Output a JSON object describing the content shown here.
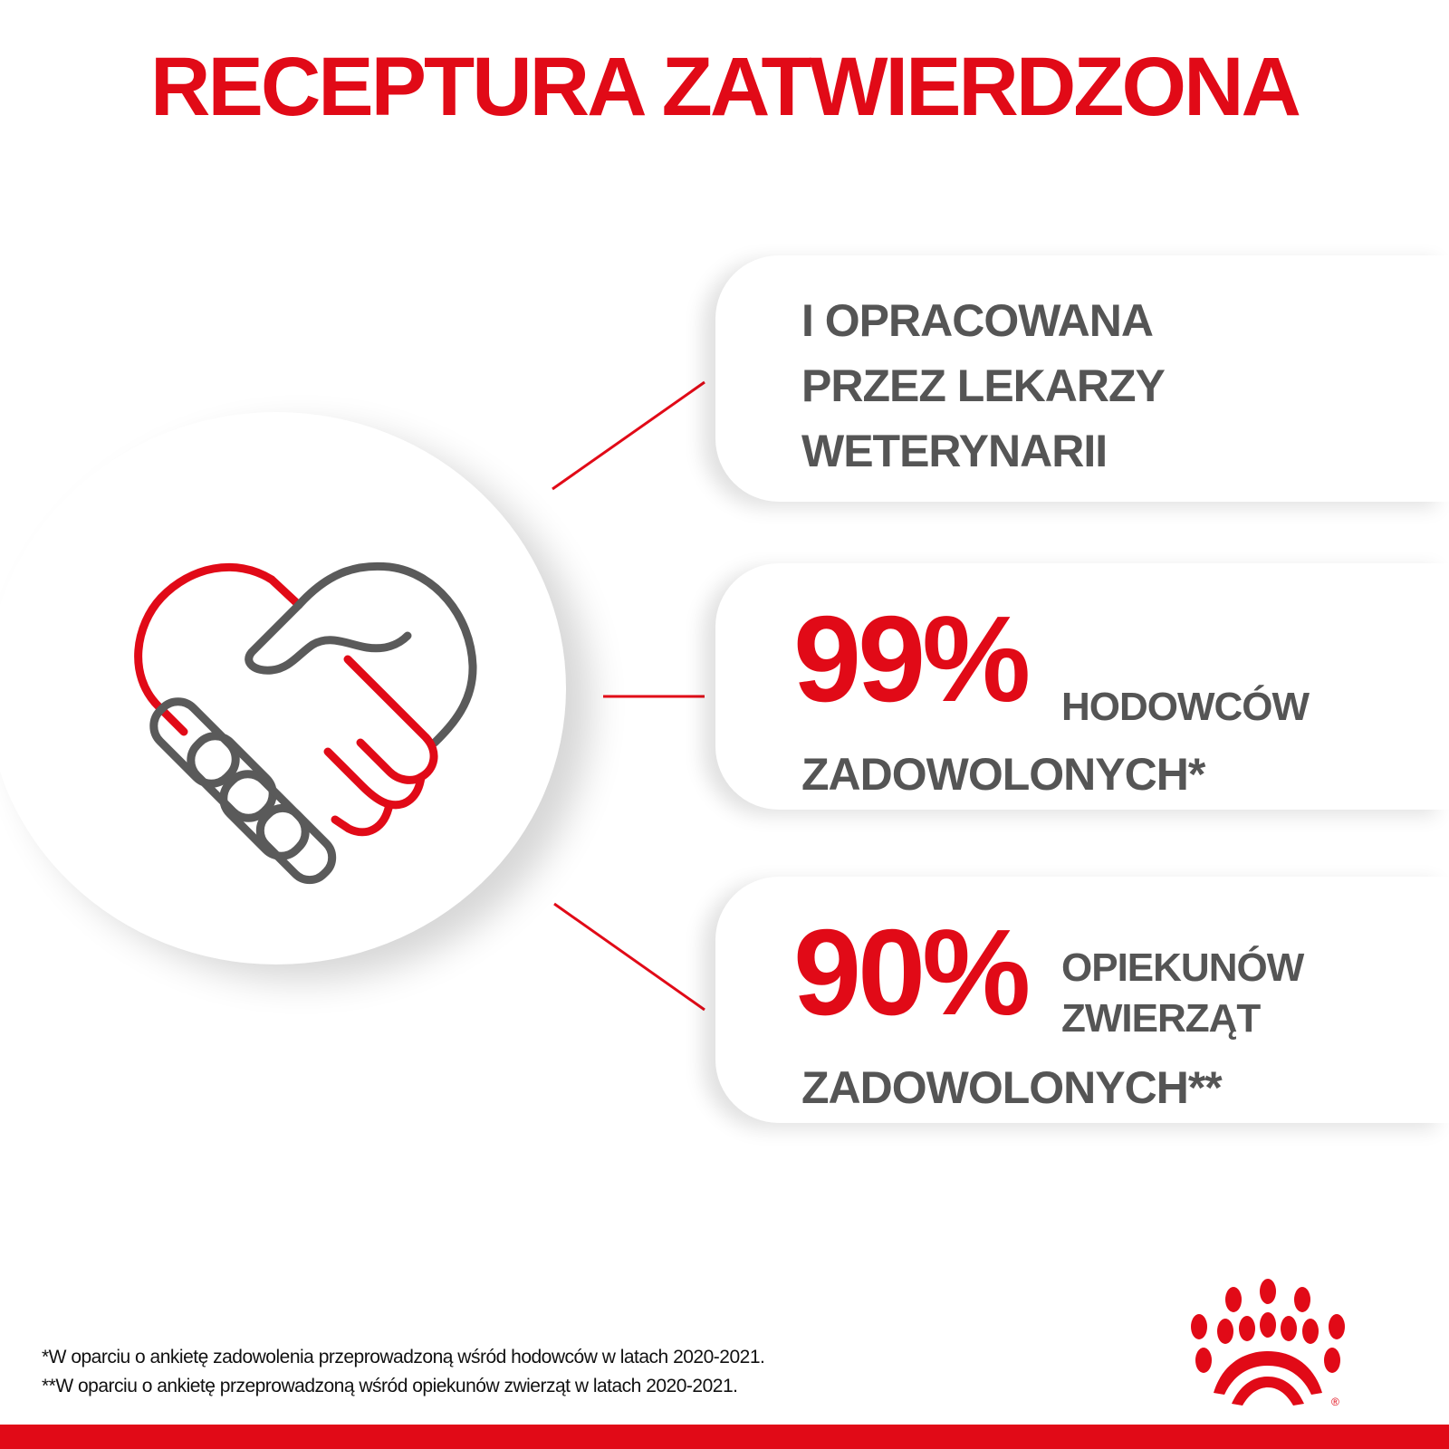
{
  "title": "RECEPTURA ZATWIERDZONA",
  "colors": {
    "brand_red": "#e10a17",
    "text_gray": "#555555"
  },
  "illustration": {
    "icon": "handshake-heart-icon"
  },
  "cards": [
    {
      "lines": [
        "I OPRACOWANA",
        "PRZEZ LEKARZY",
        "WETERYNARII"
      ]
    },
    {
      "percent": "99%",
      "label_line1": "HODOWCÓW",
      "label_line2": "ZADOWOLONYCH*"
    },
    {
      "percent": "90%",
      "label_line1": "OPIEKUNÓW",
      "label_line2": "ZWIERZĄT",
      "label_line3": "ZADOWOLONYCH**"
    }
  ],
  "footnotes": [
    "*W oparciu o ankietę zadowolenia przeprowadzoną wśród hodowców w latach 2020-2021.",
    "**W oparciu o ankietę przeprowadzoną wśród opiekunów zwierząt w latach 2020-2021."
  ],
  "logo": {
    "name": "royal-canin-crown-logo",
    "mark": "®"
  }
}
